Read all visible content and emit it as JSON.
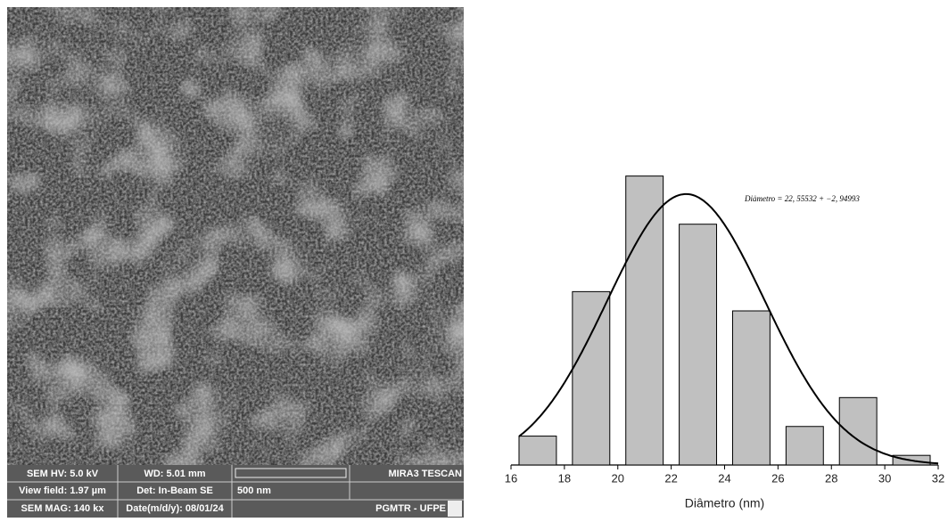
{
  "sem_panel": {
    "rows": [
      [
        "SEM HV: 5.0 kV",
        "WD: 5.01 mm",
        "",
        "MIRA3 TESCAN"
      ],
      [
        "View field: 1.97 µm",
        "Det: In-Beam SE",
        "500 nm",
        ""
      ],
      [
        "SEM MAG: 140 kx",
        "Date(m/d/y): 08/01/24",
        "",
        "PGMTR - UFPE"
      ]
    ]
  },
  "chart_data": {
    "type": "histogram",
    "bins": [
      16,
      18,
      20,
      22,
      24,
      26,
      28,
      30,
      32
    ],
    "values": [
      3,
      18,
      30,
      25,
      16,
      4,
      7,
      1
    ],
    "color": "#c0c0c0",
    "xlim": [
      16,
      32
    ],
    "xticks": [
      16,
      18,
      20,
      22,
      24,
      26,
      28,
      30,
      32
    ],
    "ylim": [
      0,
      32
    ],
    "xlabel": "Diâmetro (nm)",
    "annotation": "Diȧmetro = 22, 55532 + −2, 94993",
    "curve": {
      "mean": 22.55532,
      "sd": 2.94993
    }
  }
}
